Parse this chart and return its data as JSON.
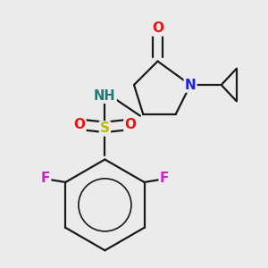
{
  "background_color": "#ebebeb",
  "bond_color": "#1a1a1a",
  "colors": {
    "O": "#ee1111",
    "N": "#2222dd",
    "S": "#bbbb00",
    "F": "#cc22cc",
    "H": "#227777",
    "C": "#1a1a1a"
  },
  "line_width": 1.6,
  "font_size": 11
}
